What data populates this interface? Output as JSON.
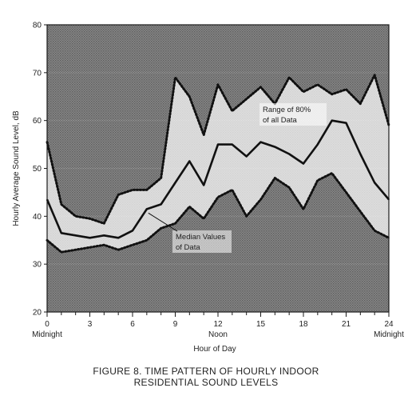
{
  "chart_data": {
    "type": "line",
    "title": "FIGURE 8. TIME PATTERN OF HOURLY INDOOR",
    "subtitle": "RESIDENTIAL SOUND LEVELS",
    "xlabel": "Hour of Day",
    "ylabel": "Hourly Average Sound Level, dB",
    "xlim": [
      0,
      24
    ],
    "ylim": [
      20,
      80
    ],
    "x_ticks": [
      0,
      3,
      6,
      9,
      12,
      15,
      18,
      21,
      24
    ],
    "x_tick_labels": [
      "0",
      "3",
      "6",
      "9",
      "12",
      "15",
      "18",
      "21",
      "24"
    ],
    "x_tick_sublabels": [
      {
        "x": 0,
        "text": "Midnight"
      },
      {
        "x": 12,
        "text": "Noon"
      },
      {
        "x": 24,
        "text": "Midnight"
      }
    ],
    "y_ticks": [
      20,
      30,
      40,
      50,
      60,
      70,
      80
    ],
    "y_tick_labels": [
      "20",
      "30",
      "40",
      "50",
      "60",
      "70",
      "80"
    ],
    "x": [
      0,
      1,
      2,
      3,
      4,
      5,
      6,
      7,
      8,
      9,
      10,
      11,
      12,
      13,
      14,
      15,
      16,
      17,
      18,
      19,
      20,
      21,
      22,
      23,
      24
    ],
    "series": [
      {
        "key": "upper",
        "style": "dotted",
        "values": [
          55.5,
          42.5,
          40,
          39.5,
          38.5,
          44.5,
          45.5,
          45.5,
          48,
          69,
          65,
          57,
          67.5,
          62,
          64.5,
          67,
          63.5,
          69,
          66,
          67.5,
          65.5,
          66.5,
          63.5,
          69.5,
          59
        ]
      },
      {
        "key": "median",
        "name": "Median Values of Data",
        "style": "solid",
        "values": [
          43.5,
          36.5,
          36,
          35.5,
          36,
          35.5,
          37,
          41.5,
          42.5,
          47,
          51.5,
          46.5,
          55,
          55,
          52.5,
          55.5,
          54.5,
          53,
          51,
          55,
          60,
          59.5,
          53,
          47,
          43.5
        ]
      },
      {
        "key": "lower",
        "style": "dotted",
        "values": [
          35,
          32.5,
          33,
          33.5,
          34,
          33,
          34,
          35,
          37.5,
          38.5,
          42,
          39.5,
          44,
          45.5,
          40,
          43.5,
          48,
          46,
          41.5,
          47.5,
          49,
          45,
          41,
          37,
          35.5
        ]
      }
    ],
    "annotations": [
      {
        "lines": [
          "Range of 80%",
          "of all Data"
        ]
      },
      {
        "lines": [
          "Median Values",
          "of Data"
        ]
      }
    ],
    "background": "#7a7a7a",
    "line_color": "#111111"
  }
}
